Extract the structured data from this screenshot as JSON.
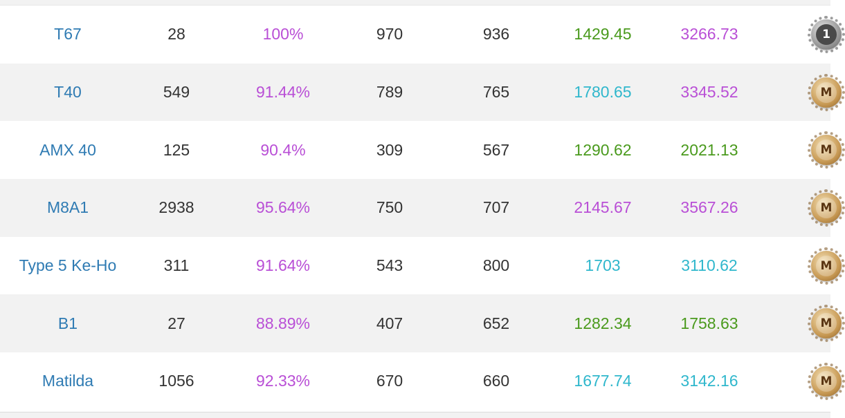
{
  "rows": [
    {
      "name": "T67",
      "battles": "28",
      "win": "100%",
      "avg_damage": "970",
      "avg_xp": "936",
      "wn8": "1429.45",
      "wn8_color": "#4a9a1d",
      "wn7": "3266.73",
      "wn7_color": "#b94fd6",
      "badge": "1",
      "badge_type": "silver"
    },
    {
      "name": "T40",
      "battles": "549",
      "win": "91.44%",
      "avg_damage": "789",
      "avg_xp": "765",
      "wn8": "1780.65",
      "wn8_color": "#2fb7cc",
      "wn7": "3345.52",
      "wn7_color": "#b94fd6",
      "badge": "M",
      "badge_type": "gold"
    },
    {
      "name": "AMX 40",
      "battles": "125",
      "win": "90.4%",
      "avg_damage": "309",
      "avg_xp": "567",
      "wn8": "1290.62",
      "wn8_color": "#4a9a1d",
      "wn7": "2021.13",
      "wn7_color": "#4a9a1d",
      "badge": "M",
      "badge_type": "gold"
    },
    {
      "name": "M8A1",
      "battles": "2938",
      "win": "95.64%",
      "avg_damage": "750",
      "avg_xp": "707",
      "wn8": "2145.67",
      "wn8_color": "#b94fd6",
      "wn7": "3567.26",
      "wn7_color": "#b94fd6",
      "badge": "M",
      "badge_type": "gold"
    },
    {
      "name": "Type 5 Ke-Ho",
      "battles": "311",
      "win": "91.64%",
      "avg_damage": "543",
      "avg_xp": "800",
      "wn8": "1703",
      "wn8_color": "#2fb7cc",
      "wn7": "3110.62",
      "wn7_color": "#2fb7cc",
      "badge": "M",
      "badge_type": "gold"
    },
    {
      "name": "B1",
      "battles": "27",
      "win": "88.89%",
      "avg_damage": "407",
      "avg_xp": "652",
      "wn8": "1282.34",
      "wn8_color": "#4a9a1d",
      "wn7": "1758.63",
      "wn7_color": "#4a9a1d",
      "badge": "M",
      "badge_type": "gold"
    },
    {
      "name": "Matilda",
      "battles": "1056",
      "win": "92.33%",
      "avg_damage": "670",
      "avg_xp": "660",
      "wn8": "1677.74",
      "wn8_color": "#2fb7cc",
      "wn7": "3142.16",
      "wn7_color": "#2fb7cc",
      "badge": "M",
      "badge_type": "gold"
    }
  ],
  "colors": {
    "name_link": "#2f7bb3",
    "win_rate": "#b94fd6",
    "text": "#333333",
    "row_alt": "#f2f2f2"
  }
}
